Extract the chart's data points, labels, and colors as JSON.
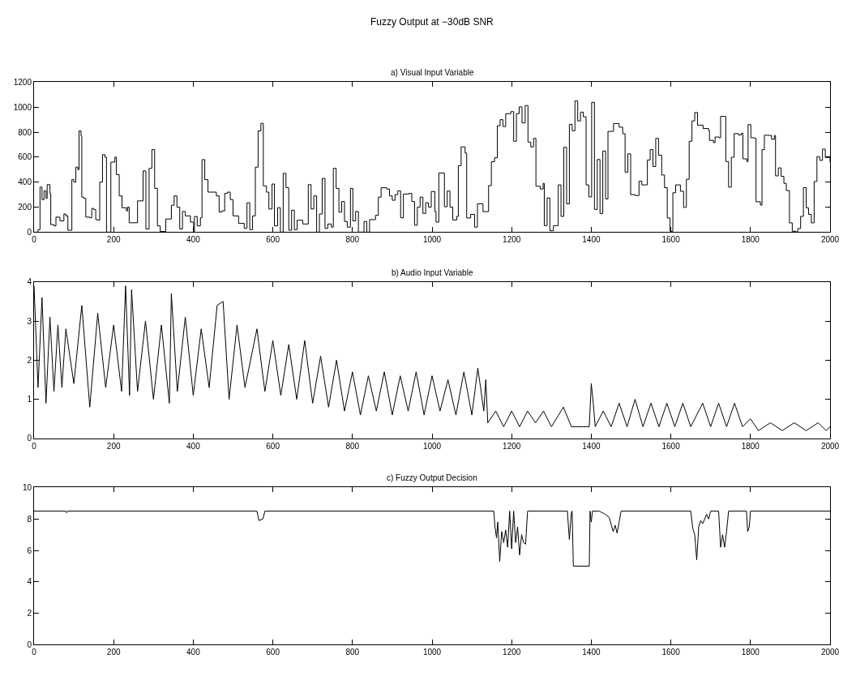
{
  "chart_data": [
    {
      "type": "step",
      "title": "a) Visual Input Variable",
      "annotations": [
        "Fuzzy Output at −30dB SNR"
      ],
      "xlim": [
        0,
        2000
      ],
      "ylim": [
        0,
        1200
      ],
      "xticks": [
        0,
        200,
        400,
        600,
        800,
        1000,
        1200,
        1400,
        1600,
        1800,
        2000
      ],
      "yticks": [
        0,
        200,
        400,
        600,
        800,
        1000,
        1200
      ],
      "marker": "none",
      "line_style": "solid",
      "series": [
        {
          "color": "#000000",
          "x": [
            0,
            10,
            15,
            20,
            25,
            30,
            33,
            40,
            42,
            50,
            55,
            65,
            75,
            80,
            85,
            90,
            95,
            100,
            105,
            110,
            113,
            118,
            120,
            125,
            130,
            140,
            145,
            150,
            155,
            160,
            165,
            172,
            178,
            182,
            193,
            203,
            207,
            214,
            221,
            232,
            235,
            239,
            260,
            274,
            281,
            289,
            296,
            303,
            310,
            317,
            331,
            345,
            352,
            359,
            366,
            373,
            380,
            393,
            401,
            403,
            410,
            418,
            422,
            429,
            437,
            458,
            465,
            472,
            479,
            486,
            493,
            500,
            514,
            528,
            535,
            542,
            549,
            556,
            563,
            570,
            576,
            584,
            590,
            598,
            604,
            612,
            619,
            626,
            633,
            640,
            647,
            654,
            661,
            675,
            689,
            696,
            703,
            710,
            717,
            724,
            731,
            738,
            747,
            752,
            759,
            766,
            773,
            780,
            787,
            795,
            801,
            808,
            815,
            829,
            836,
            843,
            858,
            865,
            872,
            886,
            893,
            900,
            907,
            914,
            921,
            928,
            942,
            949,
            956,
            963,
            970,
            977,
            984,
            991,
            998,
            1007,
            1010,
            1017,
            1031,
            1038,
            1045,
            1052,
            1062,
            1066,
            1073,
            1083,
            1087,
            1097,
            1107,
            1114,
            1128,
            1142,
            1149,
            1157,
            1164,
            1171,
            1178,
            1185,
            1198,
            1205,
            1212,
            1219,
            1226,
            1234,
            1241,
            1248,
            1255,
            1261,
            1272,
            1279,
            1282,
            1289,
            1296,
            1305,
            1317,
            1324,
            1331,
            1338,
            1345,
            1352,
            1359,
            1366,
            1373,
            1380,
            1387,
            1394,
            1401,
            1408,
            1415,
            1422,
            1429,
            1436,
            1442,
            1456,
            1470,
            1479,
            1485,
            1492,
            1499,
            1510,
            1520,
            1527,
            1541,
            1548,
            1555,
            1562,
            1569,
            1577,
            1584,
            1591,
            1598,
            1605,
            1612,
            1624,
            1632,
            1639,
            1646,
            1653,
            1660,
            1667,
            1681,
            1695,
            1697,
            1707,
            1711,
            1721,
            1725,
            1735,
            1738,
            1745,
            1752,
            1759,
            1770,
            1777,
            1781,
            1791,
            1794,
            1801,
            1811,
            1814,
            1825,
            1829,
            1835,
            1846,
            1853,
            1860,
            1863,
            1870,
            1877,
            1884,
            1890,
            1898,
            1905,
            1915,
            1919,
            1926,
            1933,
            1940,
            1946,
            1953,
            1960,
            1967,
            1974,
            1981,
            1988,
            2000
          ],
          "values": [
            0,
            20,
            360,
            260,
            330,
            270,
            380,
            310,
            60,
            50,
            120,
            90,
            145,
            130,
            15,
            15,
            420,
            400,
            520,
            500,
            810,
            770,
            280,
            270,
            120,
            115,
            190,
            180,
            100,
            95,
            400,
            620,
            600,
            0,
            560,
            600,
            460,
            290,
            195,
            170,
            200,
            75,
            250,
            490,
            25,
            510,
            660,
            350,
            50,
            5,
            105,
            215,
            290,
            200,
            25,
            165,
            130,
            80,
            0,
            125,
            50,
            115,
            580,
            420,
            320,
            290,
            160,
            170,
            310,
            320,
            260,
            130,
            70,
            30,
            235,
            20,
            130,
            520,
            810,
            870,
            370,
            320,
            185,
            385,
            50,
            195,
            0,
            470,
            355,
            15,
            175,
            20,
            95,
            65,
            380,
            185,
            290,
            0,
            145,
            430,
            30,
            65,
            40,
            510,
            350,
            160,
            245,
            85,
            40,
            350,
            90,
            165,
            0,
            85,
            0,
            100,
            135,
            280,
            355,
            345,
            290,
            255,
            300,
            330,
            115,
            305,
            310,
            245,
            55,
            200,
            280,
            150,
            235,
            200,
            325,
            165,
            80,
            473,
            203,
            329,
            200,
            97,
            126,
            532,
            682,
            633,
            113,
            142,
            40,
            227,
            164,
            372,
            563,
            595,
            851,
            900,
            845,
            948,
            964,
            727,
            948,
            1002,
            874,
            1013,
            721,
            682,
            750,
            367,
            345,
            390,
            52,
            273,
            11,
            52,
            378,
            126,
            678,
            227,
            863,
            811,
            1050,
            890,
            960,
            923,
            378,
            282,
            1038,
            182,
            581,
            149,
            649,
            266,
            806,
            869,
            840,
            788,
            480,
            626,
            300,
            293,
            408,
            378,
            577,
            660,
            525,
            750,
            615,
            457,
            356,
            113,
            7,
            315,
            378,
            327,
            198,
            423,
            727,
            890,
            957,
            856,
            829,
            811,
            734,
            716,
            761,
            755,
            926,
            926,
            565,
            360,
            599,
            788,
            777,
            791,
            586,
            565,
            860,
            755,
            750,
            243,
            216,
            660,
            775,
            773,
            743,
            773,
            450,
            514,
            446,
            390,
            333,
            74,
            7,
            0,
            29,
            126,
            356,
            194,
            142,
            74,
            405,
            604,
            574,
            664,
            597,
            559
          ]
        }
      ]
    },
    {
      "type": "line",
      "title": "b) Audio Input Variable",
      "xlim": [
        0,
        2000
      ],
      "ylim": [
        0,
        4
      ],
      "xticks": [
        0,
        200,
        400,
        600,
        800,
        1000,
        1200,
        1400,
        1600,
        1800,
        2000
      ],
      "yticks": [
        0,
        1,
        2,
        3,
        4
      ],
      "marker": "none",
      "line_style": "solid",
      "series": [
        {
          "color": "#000000",
          "x": [
            0,
            10,
            20,
            30,
            40,
            50,
            60,
            70,
            80,
            100,
            120,
            140,
            160,
            180,
            200,
            220,
            230,
            240,
            245,
            260,
            280,
            300,
            320,
            340,
            345,
            360,
            380,
            400,
            420,
            440,
            460,
            475,
            490,
            510,
            530,
            560,
            580,
            600,
            620,
            640,
            660,
            680,
            700,
            720,
            740,
            760,
            780,
            800,
            820,
            840,
            860,
            880,
            900,
            920,
            940,
            960,
            980,
            1000,
            1020,
            1040,
            1060,
            1080,
            1100,
            1115,
            1130,
            1135,
            1140,
            1160,
            1180,
            1200,
            1220,
            1240,
            1260,
            1280,
            1300,
            1330,
            1350,
            1380,
            1395,
            1400,
            1405,
            1410,
            1430,
            1450,
            1470,
            1490,
            1510,
            1530,
            1550,
            1570,
            1590,
            1610,
            1630,
            1650,
            1680,
            1700,
            1720,
            1740,
            1760,
            1780,
            1800,
            1820,
            1850,
            1880,
            1910,
            1940,
            1970,
            1990,
            2000
          ],
          "values": [
            3.9,
            1.3,
            3.6,
            0.9,
            3.1,
            1.2,
            2.9,
            1.3,
            2.8,
            1.4,
            3.4,
            0.8,
            3.2,
            1.3,
            2.9,
            1.2,
            3.9,
            1.1,
            3.8,
            1.2,
            3.0,
            1.0,
            2.9,
            0.9,
            3.7,
            1.2,
            3.1,
            1.1,
            2.8,
            1.3,
            3.4,
            3.5,
            1.0,
            2.9,
            1.3,
            2.8,
            1.2,
            2.5,
            1.1,
            2.4,
            1.0,
            2.5,
            0.9,
            2.1,
            0.8,
            2.0,
            0.7,
            1.7,
            0.6,
            1.6,
            0.7,
            1.7,
            0.6,
            1.6,
            0.7,
            1.7,
            0.6,
            1.6,
            0.7,
            1.5,
            0.6,
            1.7,
            0.6,
            1.8,
            0.7,
            1.5,
            0.4,
            0.7,
            0.3,
            0.7,
            0.3,
            0.7,
            0.4,
            0.7,
            0.3,
            0.8,
            0.3,
            0.3,
            0.3,
            1.4,
            0.9,
            0.3,
            0.7,
            0.3,
            0.9,
            0.3,
            1.0,
            0.3,
            0.9,
            0.3,
            0.9,
            0.3,
            0.9,
            0.3,
            0.9,
            0.3,
            0.9,
            0.3,
            0.9,
            0.3,
            0.5,
            0.2,
            0.4,
            0.2,
            0.4,
            0.2,
            0.4,
            0.2,
            0.3
          ]
        }
      ]
    },
    {
      "type": "line",
      "title": "c) Fuzzy Output Decision",
      "xlim": [
        0,
        2000
      ],
      "ylim": [
        0,
        10
      ],
      "xticks": [
        0,
        200,
        400,
        600,
        800,
        1000,
        1200,
        1400,
        1600,
        1800,
        2000
      ],
      "yticks": [
        0,
        2,
        4,
        6,
        8,
        10
      ],
      "marker": "none",
      "line_style": "solid",
      "series": [
        {
          "color": "#000000",
          "x": [
            0,
            80,
            82,
            84,
            560,
            565,
            575,
            580,
            1155,
            1158,
            1162,
            1165,
            1170,
            1175,
            1180,
            1185,
            1190,
            1195,
            1200,
            1205,
            1210,
            1215,
            1220,
            1225,
            1230,
            1235,
            1240,
            1340,
            1345,
            1350,
            1352,
            1355,
            1395,
            1397,
            1400,
            1403,
            1420,
            1435,
            1445,
            1455,
            1460,
            1465,
            1470,
            1475,
            1650,
            1655,
            1660,
            1665,
            1670,
            1675,
            1680,
            1690,
            1695,
            1700,
            1720,
            1725,
            1730,
            1735,
            1740,
            1745,
            1790,
            1793,
            1797,
            1800,
            2000
          ],
          "values": [
            8.5,
            8.5,
            8.4,
            8.5,
            8.5,
            7.9,
            8.0,
            8.5,
            8.5,
            7.5,
            6.8,
            7.8,
            5.3,
            7.2,
            6.5,
            7.3,
            6.2,
            8.5,
            6.1,
            8.5,
            6.5,
            7.5,
            5.7,
            7.0,
            6.5,
            6.4,
            8.5,
            8.5,
            6.7,
            8.4,
            8.5,
            5.0,
            5.0,
            8.5,
            7.8,
            8.5,
            8.5,
            8.3,
            8.1,
            7.2,
            7.6,
            7.1,
            7.8,
            8.5,
            8.5,
            7.4,
            7.0,
            5.4,
            7.5,
            7.9,
            7.7,
            8.3,
            8.0,
            8.5,
            8.5,
            6.2,
            7.0,
            6.2,
            7.2,
            8.5,
            8.5,
            7.2,
            7.5,
            8.5,
            8.5
          ]
        }
      ]
    }
  ]
}
